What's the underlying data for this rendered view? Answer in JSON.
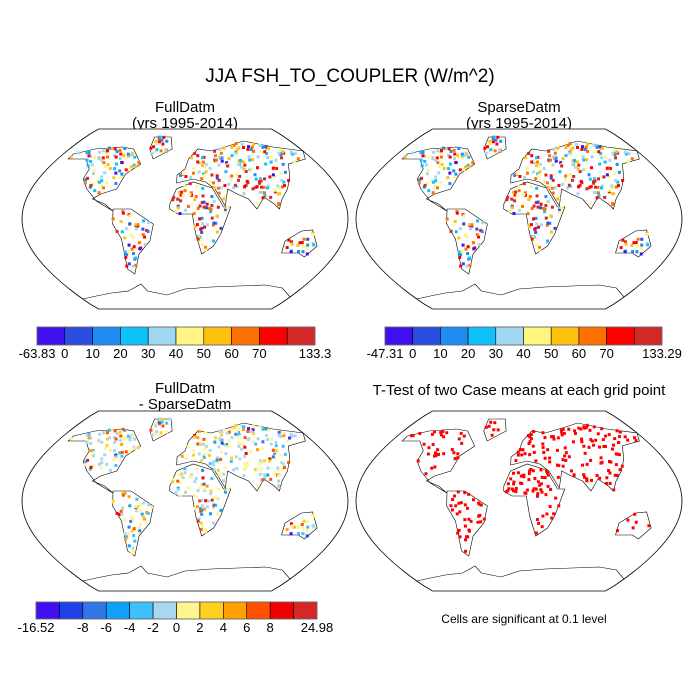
{
  "chart_data": {
    "type": "heatmap",
    "title": "JJA FSH_TO_COUPLER (W/m^2)",
    "panels": [
      {
        "title_line1": "FullDatm",
        "title_line2": "(yrs 1995-2014)",
        "colorbar": {
          "colors": [
            "#4010f0",
            "#2c4ee0",
            "#1e8cf0",
            "#10c0f8",
            "#a0d8f0",
            "#fff580",
            "#ffc010",
            "#ff7000",
            "#ff0000",
            "#d42828"
          ],
          "labels": [
            "-63.83",
            "0",
            "10",
            "20",
            "30",
            "40",
            "50",
            "60",
            "70",
            "",
            "133.3"
          ]
        },
        "palette_weights": [
          0.04,
          0.05,
          0.1,
          0.12,
          0.14,
          0.15,
          0.14,
          0.12,
          0.1,
          0.04
        ]
      },
      {
        "title_line1": "SparseDatm",
        "title_line2": "(yrs 1995-2014)",
        "colorbar": {
          "colors": [
            "#4010f0",
            "#2c4ee0",
            "#1e8cf0",
            "#10c0f8",
            "#a0d8f0",
            "#fff580",
            "#ffc010",
            "#ff7000",
            "#ff0000",
            "#d42828"
          ],
          "labels": [
            "-47.31",
            "0",
            "10",
            "20",
            "30",
            "40",
            "50",
            "60",
            "70",
            "",
            "133.29"
          ]
        },
        "palette_weights": [
          0.04,
          0.05,
          0.1,
          0.12,
          0.14,
          0.15,
          0.14,
          0.12,
          0.1,
          0.04
        ]
      },
      {
        "title_line1": "FullDatm",
        "title_line2": "- SparseDatm",
        "colorbar": {
          "colors": [
            "#4010f0",
            "#2040e8",
            "#3078e8",
            "#10a0f8",
            "#40c0f8",
            "#a8d8f0",
            "#fff590",
            "#ffd020",
            "#ffa000",
            "#ff5000",
            "#f00000",
            "#d42828"
          ],
          "labels": [
            "-16.52",
            "",
            "-8",
            "-6",
            "-4",
            "-2",
            "0",
            "2",
            "4",
            "6",
            "8",
            "",
            "24.98"
          ]
        },
        "palette_weights": [
          0.01,
          0.01,
          0.03,
          0.04,
          0.08,
          0.3,
          0.3,
          0.1,
          0.06,
          0.04,
          0.02,
          0.01
        ]
      },
      {
        "title_line1": "T-Test of two Case means at each grid point",
        "title_line2": "",
        "note": "Cells are significant at 0.1 level",
        "colorbar": {
          "colors": [
            "#ff0000"
          ],
          "labels": []
        },
        "palette_weights": [
          1
        ]
      }
    ]
  }
}
